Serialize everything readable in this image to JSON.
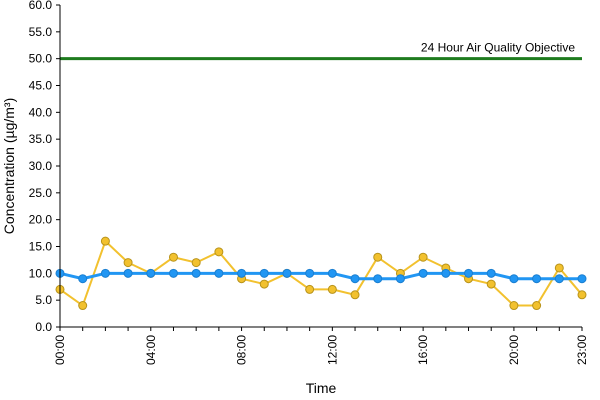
{
  "chart_data": {
    "type": "line",
    "title": "",
    "xlabel": "Time",
    "ylabel": "Concentration (µg/m³)",
    "ylim": [
      0,
      60
    ],
    "y_ticks": [
      "0.0",
      "5.0",
      "10.0",
      "15.0",
      "20.0",
      "25.0",
      "30.0",
      "35.0",
      "40.0",
      "45.0",
      "50.0",
      "55.0",
      "60.0"
    ],
    "x_tick_labels": [
      "00:00",
      "04:00",
      "08:00",
      "12:00",
      "16:00",
      "20:00",
      "23:00"
    ],
    "x_tick_hours": [
      0,
      4,
      8,
      12,
      16,
      20,
      23
    ],
    "x": [
      0,
      1,
      2,
      3,
      4,
      5,
      6,
      7,
      8,
      9,
      10,
      11,
      12,
      13,
      14,
      15,
      16,
      17,
      18,
      19,
      20,
      21,
      22,
      23
    ],
    "grid": false,
    "series": [
      {
        "color": "#f2c12e",
        "values": [
          7,
          4,
          16,
          12,
          10,
          13,
          12,
          14,
          9,
          8,
          10,
          7,
          7,
          6,
          13,
          10,
          13,
          11,
          9,
          8,
          4,
          4,
          11,
          6
        ]
      },
      {
        "color": "#2196f3",
        "values": [
          10,
          9,
          10,
          10,
          10,
          10,
          10,
          10,
          10,
          10,
          10,
          10,
          10,
          9,
          9,
          9,
          10,
          10,
          10,
          10,
          9,
          9,
          9,
          9
        ]
      }
    ],
    "reference_line": {
      "label": "24 Hour Air Quality Objective",
      "value": 50,
      "color": "#1e7b1e"
    }
  }
}
